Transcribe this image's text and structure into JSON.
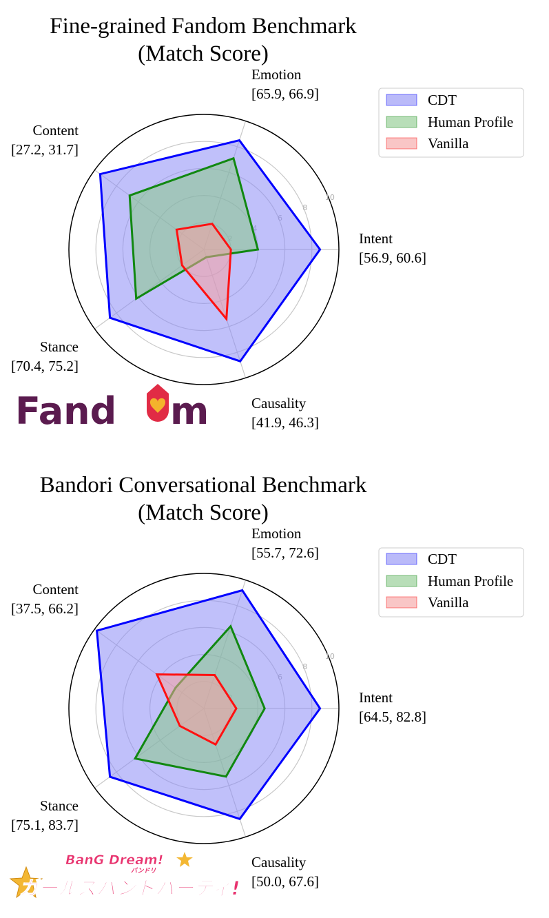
{
  "chart_data": [
    {
      "type": "radar",
      "title": "Fine-grained Fandom Benchmark",
      "subtitle": "(Match Score)",
      "axes": [
        {
          "name": "Intent",
          "range_label": "[56.9, 60.6]"
        },
        {
          "name": "Emotion",
          "range_label": "[65.9, 66.9]"
        },
        {
          "name": "Content",
          "range_label": "[27.2, 31.7]"
        },
        {
          "name": "Stance",
          "range_label": "[70.4, 75.2]"
        },
        {
          "name": "Causality",
          "range_label": "[41.9, 46.3]"
        }
      ],
      "rlim": [
        0,
        10
      ],
      "rticks": [
        "2",
        "4",
        "6",
        "8",
        "10"
      ],
      "series": [
        {
          "name": "CDT",
          "values": [
            8.6,
            8.5,
            9.5,
            8.6,
            8.7
          ],
          "line_color": "#0000ff",
          "fill_color": "#8c8cf5"
        },
        {
          "name": "Human Profile",
          "values": [
            4.0,
            7.1,
            6.8,
            6.2,
            0.6
          ],
          "line_color": "#118811",
          "fill_color": "#88c888"
        },
        {
          "name": "Vanilla",
          "values": [
            2.0,
            2.0,
            2.5,
            2.0,
            5.4
          ],
          "line_color": "#ff1111",
          "fill_color": "#f5a0a0"
        }
      ],
      "logo": "Fandom"
    },
    {
      "type": "radar",
      "title": "Bandori Conversational Benchmark",
      "subtitle": "(Match Score)",
      "axes": [
        {
          "name": "Intent",
          "range_label": "[64.5, 82.8]"
        },
        {
          "name": "Emotion",
          "range_label": "[55.7, 72.6]"
        },
        {
          "name": "Content",
          "range_label": "[37.5, 66.2]"
        },
        {
          "name": "Stance",
          "range_label": "[75.1, 83.7]"
        },
        {
          "name": "Causality",
          "range_label": "[50.0, 67.6]"
        }
      ],
      "rlim": [
        0,
        10
      ],
      "rticks": [
        "2",
        "4",
        "6",
        "8",
        "10"
      ],
      "series": [
        {
          "name": "CDT",
          "values": [
            8.6,
            9.2,
            9.8,
            8.6,
            8.6
          ],
          "line_color": "#0000ff",
          "fill_color": "#8c8cf5"
        },
        {
          "name": "Human Profile",
          "values": [
            4.5,
            6.4,
            2.6,
            6.3,
            5.3
          ],
          "line_color": "#118811",
          "fill_color": "#88c888"
        },
        {
          "name": "Vanilla",
          "values": [
            2.4,
            2.6,
            4.3,
            2.2,
            2.8
          ],
          "line_color": "#ff1111",
          "fill_color": "#f5a0a0"
        }
      ],
      "logo_lines": [
        "BanG Dream!",
        "バンドリ",
        "ガールズバンドパーティ!"
      ]
    }
  ]
}
